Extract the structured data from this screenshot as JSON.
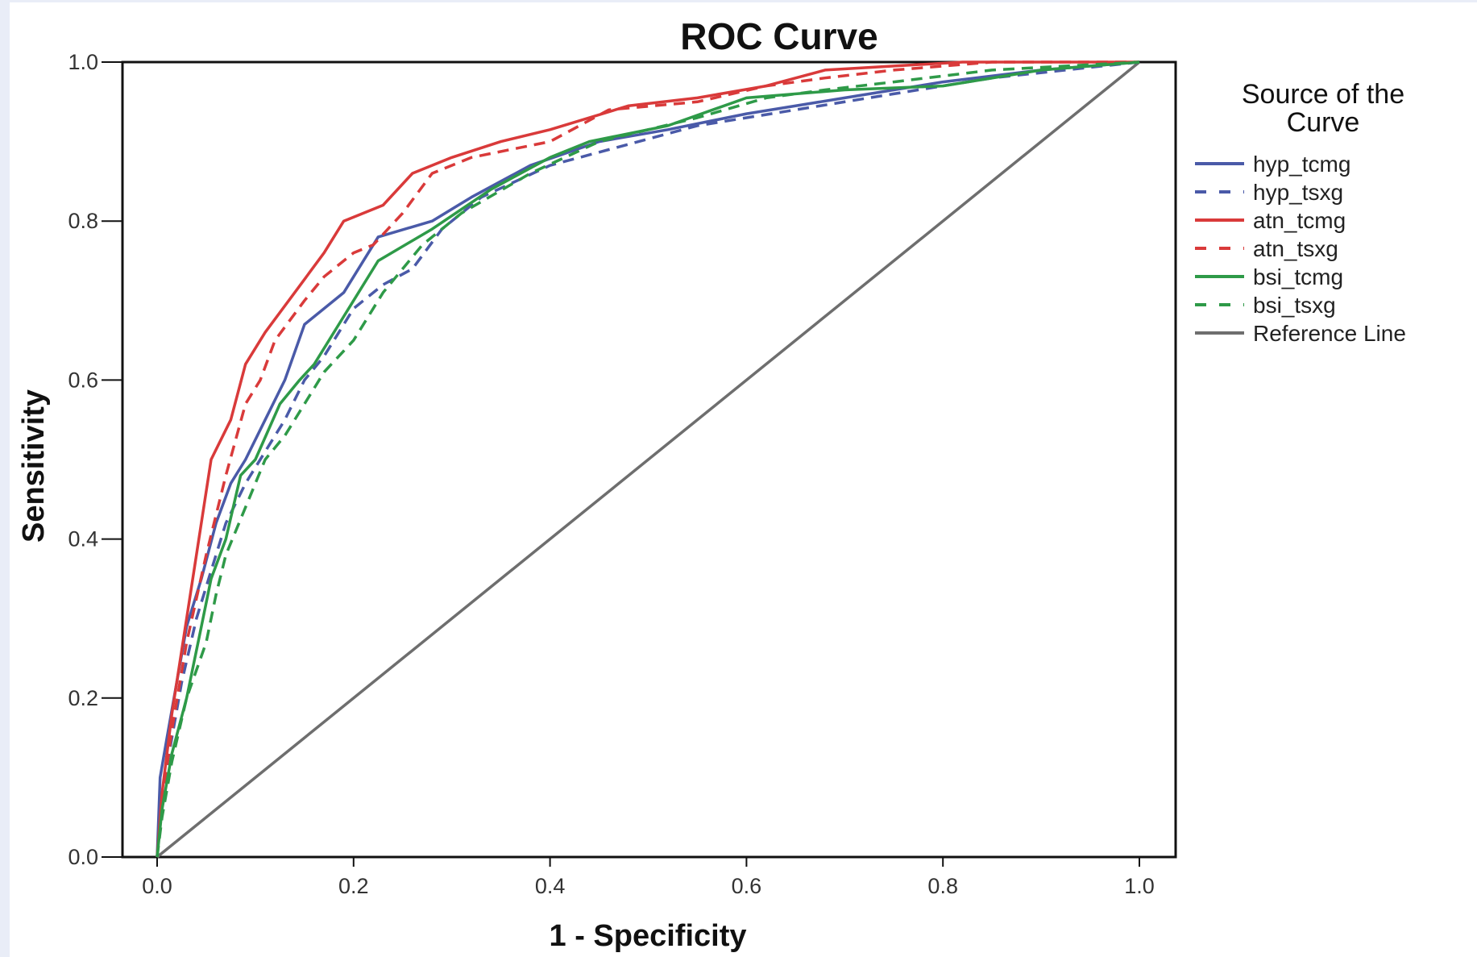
{
  "chart_data": {
    "type": "line",
    "title": "ROC Curve",
    "xlabel": "1 - Specificity",
    "ylabel": "Sensitivity",
    "xlim": [
      0,
      1
    ],
    "ylim": [
      0,
      1
    ],
    "x_ticks": [
      "0.0",
      "0.2",
      "0.4",
      "0.6",
      "0.8",
      "1.0"
    ],
    "y_ticks": [
      "0.0",
      "0.2",
      "0.4",
      "0.6",
      "0.8",
      "1.0"
    ],
    "grid": false,
    "legend_title": "Source of the Curve",
    "legend_position": "right",
    "series": [
      {
        "name": "hyp_tcmg",
        "color": "#4a5aa8",
        "dashed": false,
        "x": [
          0,
          0.003,
          0.01,
          0.02,
          0.03,
          0.045,
          0.06,
          0.075,
          0.09,
          0.11,
          0.13,
          0.15,
          0.19,
          0.225,
          0.28,
          0.32,
          0.38,
          0.45,
          0.52,
          0.6,
          0.7,
          0.8,
          0.9,
          1.0
        ],
        "y": [
          0,
          0.1,
          0.15,
          0.22,
          0.29,
          0.35,
          0.42,
          0.47,
          0.5,
          0.55,
          0.6,
          0.67,
          0.71,
          0.78,
          0.8,
          0.83,
          0.87,
          0.9,
          0.915,
          0.935,
          0.955,
          0.975,
          0.99,
          1.0
        ]
      },
      {
        "name": "hyp_tsxg",
        "color": "#4a5aa8",
        "dashed": true,
        "x": [
          0,
          0.005,
          0.015,
          0.025,
          0.04,
          0.055,
          0.07,
          0.09,
          0.11,
          0.13,
          0.15,
          0.17,
          0.2,
          0.23,
          0.26,
          0.29,
          0.33,
          0.4,
          0.46,
          0.55,
          0.65,
          0.75,
          0.85,
          1.0
        ],
        "y": [
          0,
          0.08,
          0.15,
          0.22,
          0.3,
          0.36,
          0.42,
          0.47,
          0.51,
          0.55,
          0.6,
          0.63,
          0.69,
          0.72,
          0.74,
          0.79,
          0.83,
          0.87,
          0.89,
          0.92,
          0.94,
          0.96,
          0.98,
          1.0
        ]
      },
      {
        "name": "atn_tcmg",
        "color": "#d93a3a",
        "dashed": false,
        "x": [
          0,
          0.005,
          0.015,
          0.03,
          0.055,
          0.075,
          0.09,
          0.11,
          0.14,
          0.17,
          0.19,
          0.23,
          0.26,
          0.3,
          0.35,
          0.4,
          0.48,
          0.55,
          0.62,
          0.68,
          0.75,
          0.82,
          0.9,
          1.0
        ],
        "y": [
          0,
          0.08,
          0.18,
          0.3,
          0.5,
          0.55,
          0.62,
          0.66,
          0.71,
          0.76,
          0.8,
          0.82,
          0.86,
          0.88,
          0.9,
          0.915,
          0.945,
          0.955,
          0.97,
          0.99,
          0.995,
          1.0,
          1.0,
          1.0
        ]
      },
      {
        "name": "atn_tsxg",
        "color": "#d93a3a",
        "dashed": true,
        "x": [
          0,
          0.005,
          0.015,
          0.03,
          0.05,
          0.07,
          0.09,
          0.105,
          0.12,
          0.15,
          0.17,
          0.2,
          0.22,
          0.25,
          0.28,
          0.32,
          0.4,
          0.46,
          0.55,
          0.62,
          0.68,
          0.75,
          0.85,
          1.0
        ],
        "y": [
          0,
          0.07,
          0.16,
          0.27,
          0.38,
          0.48,
          0.57,
          0.6,
          0.65,
          0.7,
          0.73,
          0.76,
          0.77,
          0.81,
          0.86,
          0.88,
          0.9,
          0.94,
          0.95,
          0.97,
          0.98,
          0.99,
          1.0,
          1.0
        ]
      },
      {
        "name": "bsi_tcmg",
        "color": "#2e9a48",
        "dashed": false,
        "x": [
          0,
          0.005,
          0.015,
          0.03,
          0.045,
          0.055,
          0.07,
          0.085,
          0.1,
          0.125,
          0.145,
          0.16,
          0.19,
          0.225,
          0.28,
          0.34,
          0.4,
          0.44,
          0.52,
          0.6,
          0.7,
          0.8,
          0.9,
          1.0
        ],
        "y": [
          0,
          0.06,
          0.13,
          0.2,
          0.29,
          0.35,
          0.4,
          0.48,
          0.5,
          0.57,
          0.6,
          0.62,
          0.68,
          0.75,
          0.79,
          0.84,
          0.88,
          0.9,
          0.92,
          0.955,
          0.965,
          0.97,
          0.99,
          1.0
        ]
      },
      {
        "name": "bsi_tsxg",
        "color": "#2e9a48",
        "dashed": true,
        "x": [
          0,
          0.005,
          0.015,
          0.03,
          0.05,
          0.06,
          0.07,
          0.09,
          0.11,
          0.13,
          0.15,
          0.17,
          0.2,
          0.23,
          0.27,
          0.31,
          0.38,
          0.45,
          0.55,
          0.62,
          0.68,
          0.75,
          0.85,
          1.0
        ],
        "y": [
          0,
          0.05,
          0.12,
          0.2,
          0.27,
          0.33,
          0.38,
          0.44,
          0.5,
          0.53,
          0.57,
          0.61,
          0.65,
          0.71,
          0.77,
          0.81,
          0.86,
          0.9,
          0.93,
          0.955,
          0.965,
          0.975,
          0.99,
          1.0
        ]
      },
      {
        "name": "Reference Line",
        "color": "#6e6e6e",
        "dashed": false,
        "x": [
          0,
          1
        ],
        "y": [
          0,
          1
        ]
      }
    ]
  }
}
